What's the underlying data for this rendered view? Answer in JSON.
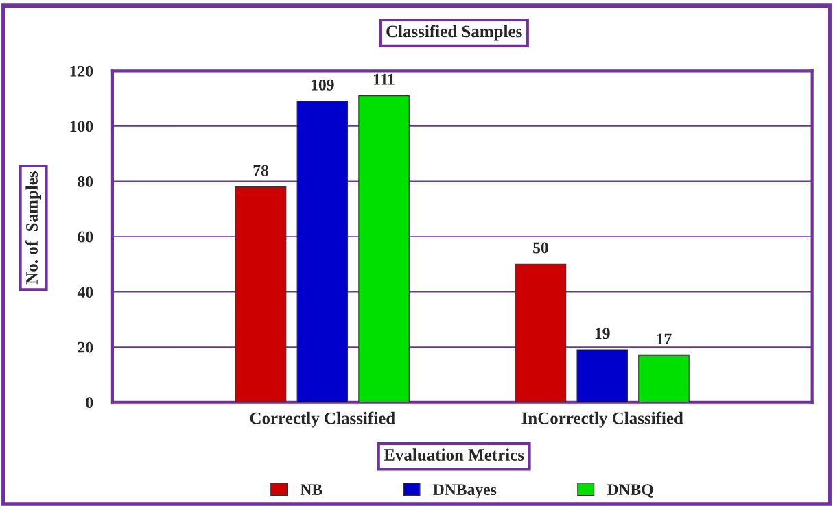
{
  "chart_data": {
    "type": "bar",
    "title": "Classified Samples",
    "xlabel": "Evaluation Metrics",
    "ylabel": "No. of  Samples",
    "categories": [
      "Correctly Classified",
      "InCorrectly Classified"
    ],
    "series": [
      {
        "name": "NB",
        "color": "#cc0000",
        "values": [
          78,
          50
        ]
      },
      {
        "name": "DNBayes",
        "color": "#0000cc",
        "values": [
          109,
          19
        ]
      },
      {
        "name": "DNBQ",
        "color": "#00e000",
        "values": [
          111,
          17
        ]
      }
    ],
    "ylim": [
      0,
      120
    ],
    "yticks": [
      0,
      20,
      40,
      60,
      80,
      100,
      120
    ],
    "grid": "y",
    "legend": "bottom",
    "data_labels": true
  }
}
